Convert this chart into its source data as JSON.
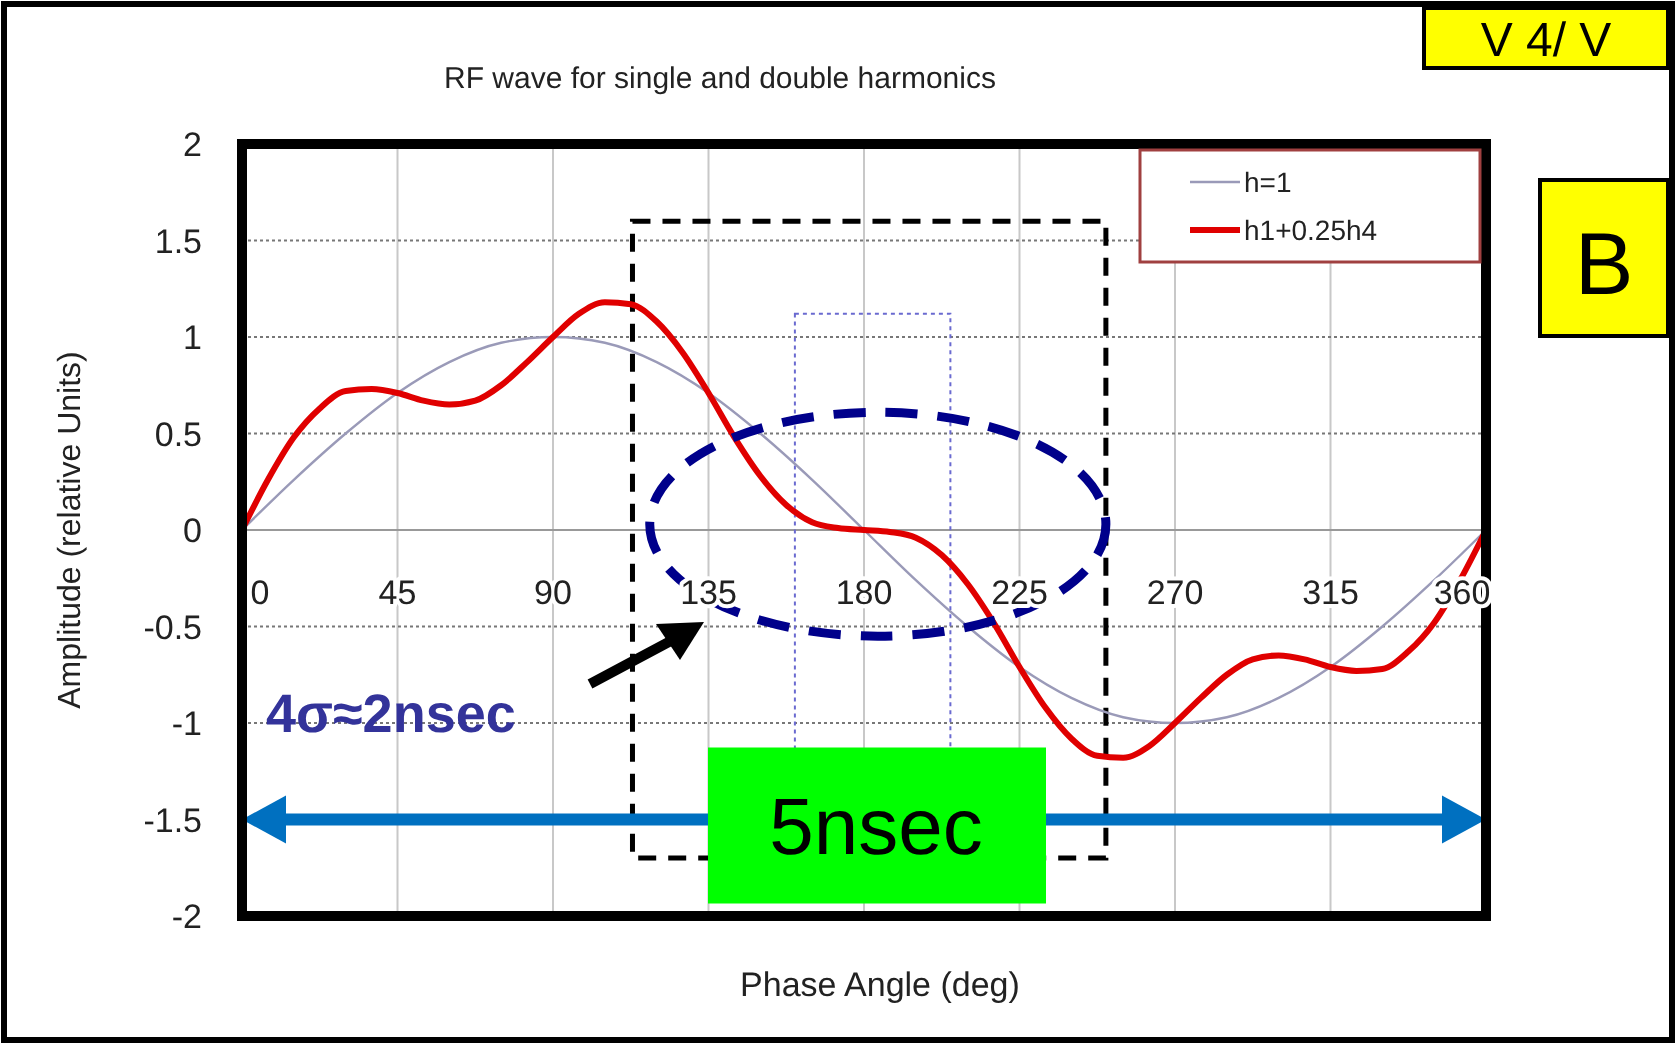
{
  "chart_data": {
    "type": "line",
    "title": "RF wave for single and double harmonics",
    "xlabel": "Phase Angle (deg)",
    "ylabel": "Amplitude (relative Units)",
    "xlim": [
      0,
      360
    ],
    "xticks": [
      0,
      45,
      90,
      135,
      180,
      225,
      270,
      315,
      360
    ],
    "ylim": [
      -2,
      2
    ],
    "yticks": [
      -2,
      -1.5,
      -1,
      -0.5,
      0,
      0.5,
      1,
      1.5,
      2
    ],
    "grid": true,
    "legend": "top right",
    "marker": "none",
    "line_style": "solid",
    "series": [
      {
        "name": "h=1",
        "color": "#9a9ab8",
        "x": [
          0,
          15,
          30,
          45,
          60,
          75,
          90,
          105,
          120,
          135,
          150,
          165,
          180,
          195,
          210,
          225,
          240,
          255,
          270,
          285,
          300,
          315,
          330,
          345,
          360
        ],
        "values": [
          0,
          0.26,
          0.5,
          0.71,
          0.87,
          0.97,
          1,
          0.97,
          0.87,
          0.71,
          0.5,
          0.26,
          0,
          -0.26,
          -0.5,
          -0.71,
          -0.87,
          -0.97,
          -1,
          -0.97,
          -0.87,
          -0.71,
          -0.5,
          -0.26,
          0
        ]
      },
      {
        "name": "h1+0.25h4",
        "color": "#e00000",
        "x": [
          0,
          7.5,
          15,
          22.5,
          30,
          37.5,
          45,
          52.5,
          60,
          67.5,
          75,
          82.5,
          90,
          97.5,
          105,
          112.5,
          120,
          127.5,
          135,
          142.5,
          150,
          157.5,
          165,
          172.5,
          180,
          187.5,
          195,
          202.5,
          210,
          217.5,
          225,
          232.5,
          240,
          247.5,
          255,
          262.5,
          270,
          277.5,
          285,
          292.5,
          300,
          307.5,
          315,
          322.5,
          330,
          337.5,
          345,
          352.5,
          360
        ],
        "values": [
          0,
          0.26,
          0.48,
          0.63,
          0.72,
          0.73,
          0.71,
          0.67,
          0.65,
          0.67,
          0.75,
          0.87,
          1,
          1.12,
          1.18,
          1.17,
          1.08,
          0.92,
          0.71,
          0.48,
          0.28,
          0.13,
          0.04,
          0.01,
          0,
          -0.01,
          -0.04,
          -0.13,
          -0.28,
          -0.48,
          -0.71,
          -0.92,
          -1.08,
          -1.17,
          -1.18,
          -1.12,
          -1,
          -0.87,
          -0.75,
          -0.67,
          -0.65,
          -0.67,
          -0.71,
          -0.73,
          -0.72,
          -0.63,
          -0.48,
          -0.26,
          0
        ]
      }
    ],
    "ref_lines": [
      {
        "axis": "y",
        "value": -1.5,
        "label": "5nsec",
        "color": "#0070c0"
      }
    ],
    "annotations": [
      "4σ≈2nsec",
      "B",
      "V 4/ V"
    ]
  }
}
